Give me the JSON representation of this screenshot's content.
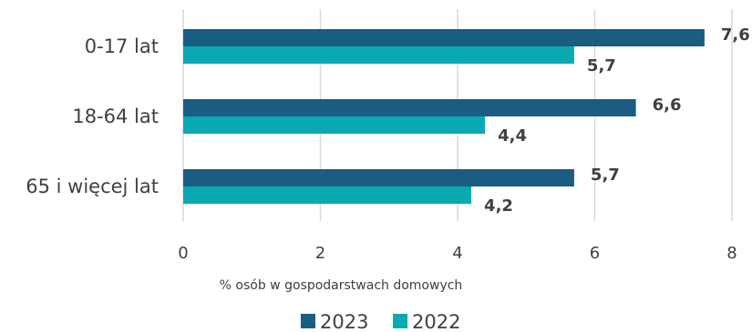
{
  "chart_data": {
    "type": "bar",
    "orientation": "horizontal",
    "categories": [
      "0-17 lat",
      "18-64 lat",
      "65 i więcej lat"
    ],
    "series": [
      {
        "name": "2023",
        "values": [
          7.6,
          6.6,
          5.7
        ],
        "labels": [
          "7,6",
          "6,6",
          "5,7"
        ],
        "color": "#1a5c82"
      },
      {
        "name": "2022",
        "values": [
          5.7,
          4.4,
          4.2
        ],
        "labels": [
          "5,7",
          "4,4",
          "4,2"
        ],
        "color": "#0aa9b1"
      }
    ],
    "xlim": [
      0,
      8
    ],
    "xticks": [
      0,
      2,
      4,
      6,
      8
    ],
    "xlabel": "% osób w gospodarstwach domowych",
    "grid": true,
    "legend_position": "bottom"
  }
}
